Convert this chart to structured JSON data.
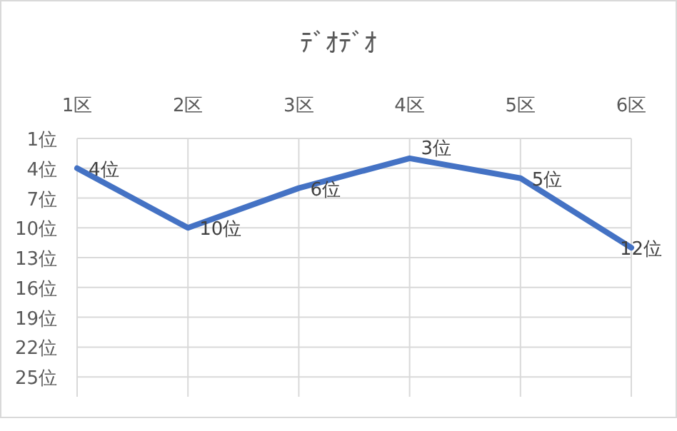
{
  "chart_data": {
    "type": "line",
    "title": "ﾃﾞｵﾃﾞｵ",
    "categories": [
      "1区",
      "2区",
      "3区",
      "4区",
      "5区",
      "6区"
    ],
    "series": [
      {
        "color": "#4472c4",
        "values": [
          4,
          10,
          6,
          3,
          5,
          12
        ],
        "value_labels": [
          "4位",
          "10位",
          "6位",
          "3位",
          "5位",
          "12位"
        ]
      }
    ],
    "ylim": [
      27,
      1
    ],
    "yticks": [
      {
        "value": 1,
        "label": "1位"
      },
      {
        "value": 4,
        "label": "4位"
      },
      {
        "value": 7,
        "label": "7位"
      },
      {
        "value": 10,
        "label": "10位"
      },
      {
        "value": 13,
        "label": "13位"
      },
      {
        "value": 16,
        "label": "16位"
      },
      {
        "value": 19,
        "label": "19位"
      },
      {
        "value": 22,
        "label": "22位"
      },
      {
        "value": 25,
        "label": "25位"
      }
    ],
    "grid": true,
    "marker": "none",
    "line_style": "solid"
  }
}
